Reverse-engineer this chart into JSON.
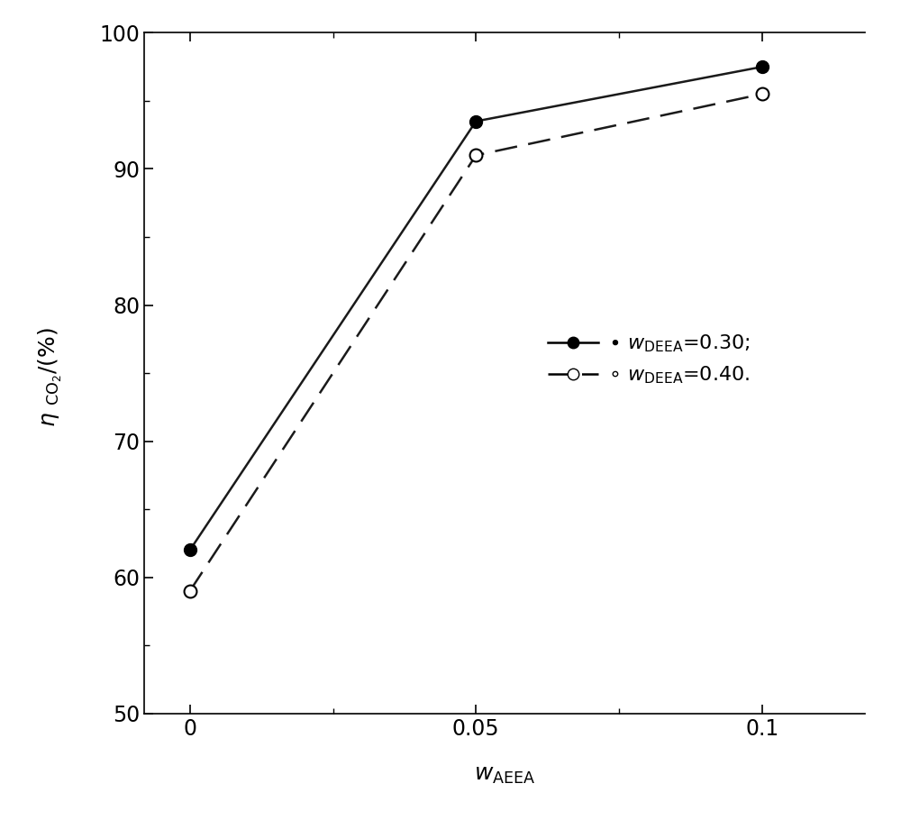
{
  "series1_x": [
    0,
    0.05,
    0.1
  ],
  "series1_y": [
    62.0,
    93.5,
    97.5
  ],
  "series2_x": [
    0,
    0.05,
    0.1
  ],
  "series2_y": [
    59.0,
    91.0,
    95.5
  ],
  "xlim": [
    -0.008,
    0.118
  ],
  "ylim": [
    50,
    100
  ],
  "yticks": [
    50,
    60,
    70,
    80,
    90,
    100
  ],
  "xticks": [
    0,
    0.05,
    0.1
  ],
  "line_color": "#1a1a1a",
  "marker_size": 10,
  "line_width": 1.8,
  "background_color": "#ffffff",
  "tick_labelsize": 17,
  "legend_fontsize": 16
}
